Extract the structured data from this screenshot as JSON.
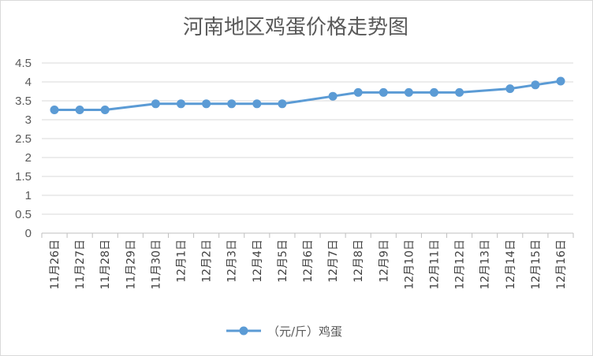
{
  "chart_data": {
    "type": "line",
    "title": "河南地区鸡蛋价格走势图",
    "xlabel": "",
    "ylabel": "",
    "categories": [
      "11月26日",
      "11月27日",
      "11月28日",
      "11月29日",
      "11月30日",
      "12月1日",
      "12月2日",
      "12月3日",
      "12月4日",
      "12月5日",
      "12月6日",
      "12月7日",
      "12月8日",
      "12月9日",
      "12月10日",
      "12月11日",
      "12月12日",
      "12月13日",
      "12月14日",
      "12月15日",
      "12月16日"
    ],
    "series": [
      {
        "name": "（元/斤）鸡蛋",
        "values": [
          3.26,
          3.26,
          3.26,
          null,
          3.42,
          3.42,
          3.42,
          3.42,
          3.42,
          3.42,
          null,
          3.62,
          3.72,
          3.72,
          3.72,
          3.72,
          3.72,
          null,
          3.82,
          3.92,
          4.02
        ],
        "color": "#5b9bd5"
      }
    ],
    "ylim": [
      0,
      4.5
    ],
    "yticks": [
      "0",
      "0.5",
      "1",
      "1.5",
      "2",
      "2.5",
      "3",
      "3.5",
      "4",
      "4.5"
    ],
    "grid": true,
    "legend": "bottom",
    "gaps_connected": true
  },
  "colors": {
    "grid": "#d9d9d9",
    "axis": "#bfbfbf",
    "text": "#595959"
  }
}
